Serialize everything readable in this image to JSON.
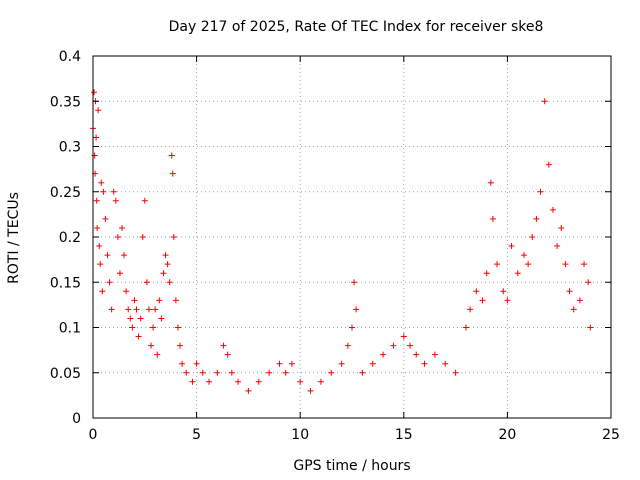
{
  "chart_data": {
    "type": "scatter",
    "title": "Day 217 of 2025, Rate Of TEC Index for receiver ske8",
    "xlabel": "GPS time / hours",
    "ylabel": "ROTI / TECUs",
    "xlim": [
      0,
      25
    ],
    "ylim": [
      0,
      0.4
    ],
    "grid": true,
    "marker": "plus",
    "marker_color": "#ff0000",
    "x_ticks": [
      {
        "value": 0,
        "label": "0"
      },
      {
        "value": 5,
        "label": "5"
      },
      {
        "value": 10,
        "label": "10"
      },
      {
        "value": 15,
        "label": "15"
      },
      {
        "value": 20,
        "label": "20"
      },
      {
        "value": 25,
        "label": "25"
      }
    ],
    "y_ticks": [
      {
        "value": 0,
        "label": "0"
      },
      {
        "value": 0.05,
        "label": "0.05"
      },
      {
        "value": 0.1,
        "label": "0.1"
      },
      {
        "value": 0.15,
        "label": "0.15"
      },
      {
        "value": 0.2,
        "label": "0.2"
      },
      {
        "value": 0.25,
        "label": "0.25"
      },
      {
        "value": 0.3,
        "label": "0.3"
      },
      {
        "value": 0.35,
        "label": "0.35"
      },
      {
        "value": 0.4,
        "label": "0.4"
      }
    ],
    "points": [
      [
        0.0,
        0.32
      ],
      [
        0.05,
        0.36
      ],
      [
        0.08,
        0.29
      ],
      [
        0.1,
        0.27
      ],
      [
        0.12,
        0.35
      ],
      [
        0.15,
        0.31
      ],
      [
        0.18,
        0.24
      ],
      [
        0.2,
        0.21
      ],
      [
        0.25,
        0.34
      ],
      [
        0.3,
        0.19
      ],
      [
        0.35,
        0.17
      ],
      [
        0.4,
        0.26
      ],
      [
        0.45,
        0.14
      ],
      [
        0.5,
        0.25
      ],
      [
        0.6,
        0.22
      ],
      [
        0.7,
        0.18
      ],
      [
        0.8,
        0.15
      ],
      [
        0.9,
        0.12
      ],
      [
        1.0,
        0.25
      ],
      [
        1.1,
        0.24
      ],
      [
        1.2,
        0.2
      ],
      [
        1.3,
        0.16
      ],
      [
        1.4,
        0.21
      ],
      [
        1.5,
        0.18
      ],
      [
        1.6,
        0.14
      ],
      [
        1.7,
        0.12
      ],
      [
        1.8,
        0.11
      ],
      [
        1.9,
        0.1
      ],
      [
        2.0,
        0.13
      ],
      [
        2.1,
        0.12
      ],
      [
        2.2,
        0.09
      ],
      [
        2.3,
        0.11
      ],
      [
        2.4,
        0.2
      ],
      [
        2.5,
        0.24
      ],
      [
        2.6,
        0.15
      ],
      [
        2.7,
        0.12
      ],
      [
        2.8,
        0.08
      ],
      [
        2.9,
        0.1
      ],
      [
        3.0,
        0.12
      ],
      [
        3.1,
        0.07
      ],
      [
        3.2,
        0.13
      ],
      [
        3.3,
        0.11
      ],
      [
        3.4,
        0.16
      ],
      [
        3.5,
        0.18
      ],
      [
        3.6,
        0.17
      ],
      [
        3.7,
        0.15
      ],
      [
        3.8,
        0.29
      ],
      [
        3.85,
        0.27
      ],
      [
        3.9,
        0.2
      ],
      [
        4.0,
        0.13
      ],
      [
        4.1,
        0.1
      ],
      [
        4.2,
        0.08
      ],
      [
        4.3,
        0.06
      ],
      [
        4.5,
        0.05
      ],
      [
        4.8,
        0.04
      ],
      [
        5.0,
        0.06
      ],
      [
        5.3,
        0.05
      ],
      [
        5.6,
        0.04
      ],
      [
        6.0,
        0.05
      ],
      [
        6.3,
        0.08
      ],
      [
        6.5,
        0.07
      ],
      [
        6.7,
        0.05
      ],
      [
        7.0,
        0.04
      ],
      [
        7.5,
        0.03
      ],
      [
        8.0,
        0.04
      ],
      [
        8.5,
        0.05
      ],
      [
        9.0,
        0.06
      ],
      [
        9.3,
        0.05
      ],
      [
        9.6,
        0.06
      ],
      [
        10.0,
        0.04
      ],
      [
        10.5,
        0.03
      ],
      [
        11.0,
        0.04
      ],
      [
        11.5,
        0.05
      ],
      [
        12.0,
        0.06
      ],
      [
        12.3,
        0.08
      ],
      [
        12.5,
        0.1
      ],
      [
        12.6,
        0.15
      ],
      [
        12.7,
        0.12
      ],
      [
        13.0,
        0.05
      ],
      [
        13.5,
        0.06
      ],
      [
        14.0,
        0.07
      ],
      [
        14.5,
        0.08
      ],
      [
        15.0,
        0.09
      ],
      [
        15.3,
        0.08
      ],
      [
        15.6,
        0.07
      ],
      [
        16.0,
        0.06
      ],
      [
        16.5,
        0.07
      ],
      [
        17.0,
        0.06
      ],
      [
        17.5,
        0.05
      ],
      [
        18.0,
        0.1
      ],
      [
        18.2,
        0.12
      ],
      [
        18.5,
        0.14
      ],
      [
        18.8,
        0.13
      ],
      [
        19.0,
        0.16
      ],
      [
        19.2,
        0.26
      ],
      [
        19.3,
        0.22
      ],
      [
        19.5,
        0.17
      ],
      [
        19.8,
        0.14
      ],
      [
        20.0,
        0.13
      ],
      [
        20.2,
        0.19
      ],
      [
        20.5,
        0.16
      ],
      [
        20.8,
        0.18
      ],
      [
        21.0,
        0.17
      ],
      [
        21.2,
        0.2
      ],
      [
        21.4,
        0.22
      ],
      [
        21.6,
        0.25
      ],
      [
        21.8,
        0.35
      ],
      [
        22.0,
        0.28
      ],
      [
        22.2,
        0.23
      ],
      [
        22.4,
        0.19
      ],
      [
        22.6,
        0.21
      ],
      [
        22.8,
        0.17
      ],
      [
        23.0,
        0.14
      ],
      [
        23.2,
        0.12
      ],
      [
        23.5,
        0.13
      ],
      [
        23.7,
        0.17
      ],
      [
        23.9,
        0.15
      ],
      [
        24.0,
        0.1
      ]
    ]
  }
}
